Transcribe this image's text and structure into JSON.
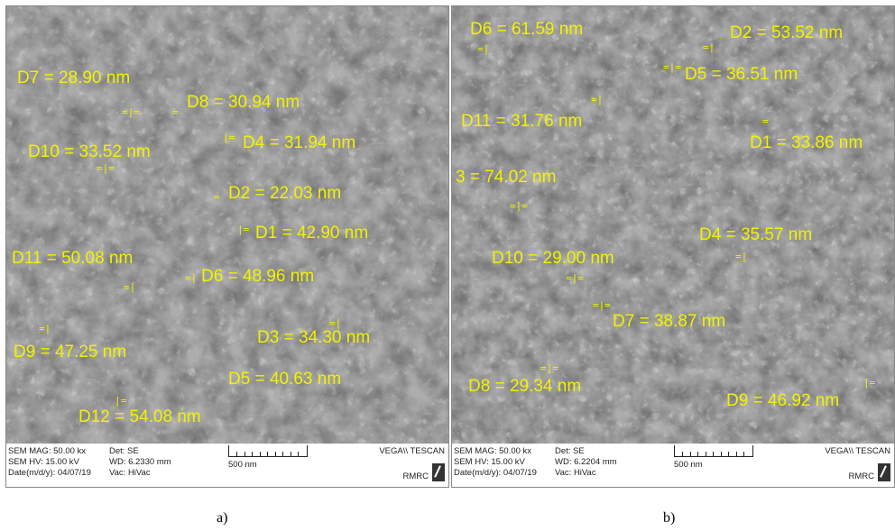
{
  "panel_a": {
    "labels": {
      "d7": "D7 = 28.90 nm",
      "d8": "D8 = 30.94 nm",
      "d10": "D10 = 33.52 nm",
      "d4": "D4 = 31.94 nm",
      "d2": "D2 = 22.03 nm",
      "d1": "D1 = 42.90 nm",
      "d11": "D11 = 50.08 nm",
      "d6": "D6 = 48.96 nm",
      "d3": "D3 = 34.30 nm",
      "d9": "D9 = 47.25 nm",
      "d5": "D5 = 40.63 nm",
      "d12": "D12 = 54.08 nm"
    },
    "databar": {
      "mag": "SEM MAG: 50.00 kx",
      "hv": "SEM HV: 15.00 kV",
      "date": "Date(m/d/y): 04/07/19",
      "det": "Det: SE",
      "wd": "WD: 6.2330 mm",
      "vac": "Vac: HiVac",
      "scale": "500 nm",
      "vendor": "VEGA\\\\ TESCAN",
      "lab": "RMRC"
    },
    "caption": "a)"
  },
  "panel_b": {
    "labels": {
      "d6": "D6 = 61.59 nm",
      "d2": "D2 = 53.52 nm",
      "d5": "D5 = 36.51 nm",
      "d11": "D11 = 31.76 nm",
      "d1": "D1 = 33.86 nm",
      "d3": "3 = 74.02 nm",
      "d4": "D4 = 35.57 nm",
      "d10": "D10 = 29.00 nm",
      "d7": "D7 = 38.87 nm",
      "d8": "D8 = 29.34 nm",
      "d9": "D9 = 46.92 nm"
    },
    "databar": {
      "mag": "SEM MAG: 50.00 kx",
      "hv": "SEM HV: 15.00 kV",
      "date": "Date(m/d/y): 04/07/19",
      "det": "Det: SE",
      "wd": "WD: 6.2204 mm",
      "vac": "Vac: HiVac",
      "scale": "500 nm",
      "vendor": "VEGA\\\\ TESCAN",
      "lab": "RMRC"
    },
    "caption": "b)"
  },
  "colors": {
    "label": "#f2f200",
    "background": "#6b6b6b"
  }
}
